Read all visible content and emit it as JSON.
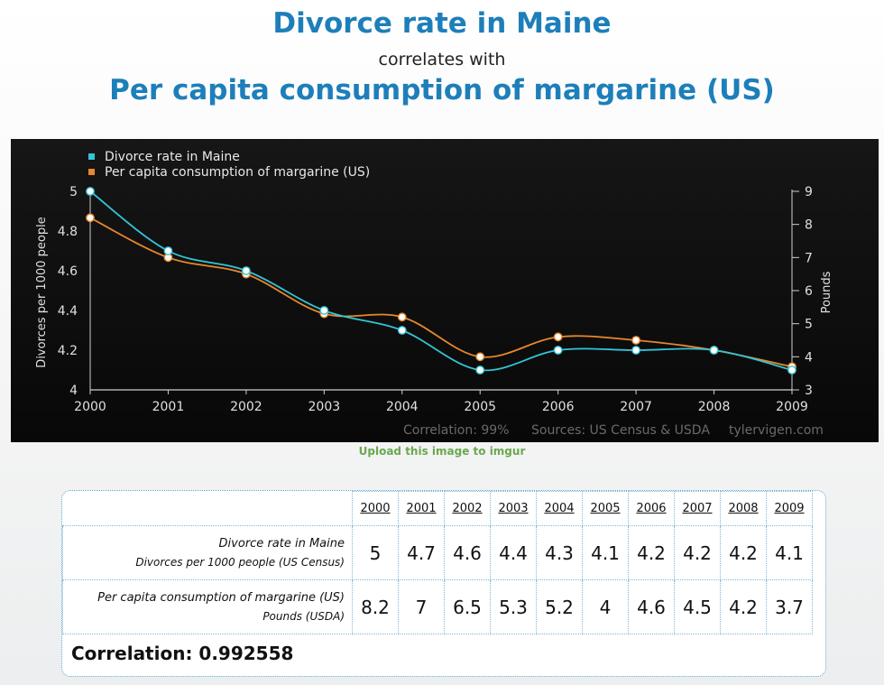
{
  "header": {
    "title_a": "Divorce rate in Maine",
    "connector": "correlates with",
    "title_b": "Per capita consumption of margarine (US)"
  },
  "chart_data": {
    "type": "line",
    "x": [
      2000,
      2001,
      2002,
      2003,
      2004,
      2005,
      2006,
      2007,
      2008,
      2009
    ],
    "series": [
      {
        "name": "Divorce rate in Maine",
        "axis": "left",
        "color": "#33c5d6",
        "values": [
          5,
          4.7,
          4.6,
          4.4,
          4.3,
          4.1,
          4.2,
          4.2,
          4.2,
          4.1
        ]
      },
      {
        "name": "Per capita consumption of margarine (US)",
        "axis": "right",
        "color": "#e8872b",
        "values": [
          8.2,
          7,
          6.5,
          5.3,
          5.2,
          4,
          4.6,
          4.5,
          4.2,
          3.7
        ]
      }
    ],
    "ylabel": "Divorces per 1000 people",
    "ylim": [
      4,
      5
    ],
    "yticks": [
      "4",
      "4.2",
      "4.4",
      "4.6",
      "4.8",
      "5"
    ],
    "y2label": "Pounds",
    "y2lim": [
      3,
      9
    ],
    "y2ticks": [
      "3",
      "4",
      "5",
      "6",
      "7",
      "8",
      "9"
    ],
    "legend_position": "top-left",
    "grid": false,
    "footer": {
      "correlation": "Correlation: 99%",
      "sources": "Sources: US Census & USDA",
      "site": "tylervigen.com"
    }
  },
  "upload_link": "Upload this image to imgur",
  "table": {
    "years": [
      "2000",
      "2001",
      "2002",
      "2003",
      "2004",
      "2005",
      "2006",
      "2007",
      "2008",
      "2009"
    ],
    "rows": [
      {
        "label": "Divorce rate in Maine",
        "sublabel": "Divorces per 1000 people (US Census)",
        "values": [
          "5",
          "4.7",
          "4.6",
          "4.4",
          "4.3",
          "4.1",
          "4.2",
          "4.2",
          "4.2",
          "4.1"
        ]
      },
      {
        "label": "Per capita consumption of margarine (US)",
        "sublabel": "Pounds (USDA)",
        "values": [
          "8.2",
          "7",
          "6.5",
          "5.3",
          "5.2",
          "4",
          "4.6",
          "4.5",
          "4.2",
          "3.7"
        ]
      }
    ],
    "correlation": "Correlation: 0.992558"
  }
}
